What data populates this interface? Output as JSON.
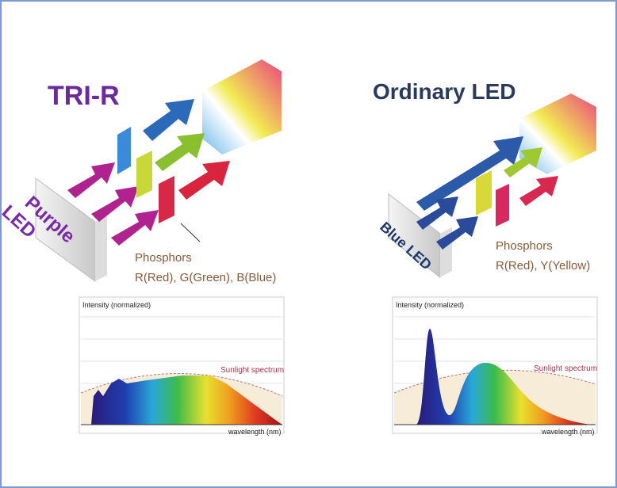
{
  "panels": [
    {
      "title": "TRI-R",
      "led_label": [
        "Purple",
        "LED"
      ],
      "phosphors": {
        "label": "Phosphors",
        "colors": "R(Red), G(Green), B(Blue)"
      },
      "graph": {
        "y_label": "Intensity (normalized)",
        "reference": "Sunlight spectrum",
        "x_label": "wavelength (nm)"
      }
    },
    {
      "title": "Ordinary LED",
      "led_label": [
        "Blue LED"
      ],
      "phosphors": {
        "label": "Phosphors",
        "colors": "R(Red), Y(Yellow)"
      },
      "graph": {
        "y_label": "Intensity (normalized)",
        "reference": "Sunlight spectrum",
        "x_label": "wavelength (nm)"
      }
    }
  ]
}
